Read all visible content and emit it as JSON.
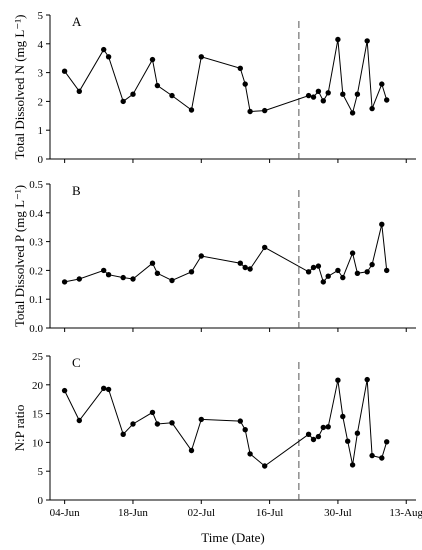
{
  "chart_data": [
    {
      "type": "line",
      "panel_label": "A",
      "ylabel": "Total Dissolved N (mg L⁻¹)",
      "ylim": [
        0,
        5
      ],
      "yticks": [
        "0",
        "1",
        "2",
        "3",
        "4",
        "5"
      ],
      "marker_date": "2022-07-22",
      "series": [
        {
          "x": [
            "2022-06-04",
            "2022-06-07",
            "2022-06-12",
            "2022-06-13",
            "2022-06-16",
            "2022-06-18",
            "2022-06-22",
            "2022-06-23",
            "2022-06-26",
            "2022-06-30",
            "2022-07-02",
            "2022-07-10",
            "2022-07-11",
            "2022-07-12",
            "2022-07-15",
            "2022-07-24",
            "2022-07-25",
            "2022-07-26",
            "2022-07-27",
            "2022-07-28",
            "2022-07-30",
            "2022-07-31",
            "2022-08-02",
            "2022-08-03",
            "2022-08-05",
            "2022-08-06",
            "2022-08-08",
            "2022-08-09"
          ],
          "y": [
            3.05,
            2.35,
            3.8,
            3.55,
            2.0,
            2.25,
            3.45,
            2.55,
            2.2,
            1.7,
            3.55,
            3.15,
            2.6,
            1.65,
            1.68,
            2.2,
            2.15,
            2.35,
            2.02,
            2.3,
            4.15,
            2.25,
            1.6,
            2.25,
            4.1,
            1.75,
            2.6,
            2.05
          ]
        }
      ]
    },
    {
      "type": "line",
      "panel_label": "B",
      "ylabel": "Total Dissolved P (mg L⁻¹)",
      "ylim": [
        0,
        0.5
      ],
      "yticks": [
        "0.0",
        "0.1",
        "0.2",
        "0.3",
        "0.4",
        "0.5"
      ],
      "marker_date": "2022-07-22",
      "series": [
        {
          "x": [
            "2022-06-04",
            "2022-06-07",
            "2022-06-12",
            "2022-06-13",
            "2022-06-16",
            "2022-06-18",
            "2022-06-22",
            "2022-06-23",
            "2022-06-26",
            "2022-06-30",
            "2022-07-02",
            "2022-07-10",
            "2022-07-11",
            "2022-07-12",
            "2022-07-15",
            "2022-07-24",
            "2022-07-25",
            "2022-07-26",
            "2022-07-27",
            "2022-07-28",
            "2022-07-30",
            "2022-07-31",
            "2022-08-02",
            "2022-08-03",
            "2022-08-05",
            "2022-08-06",
            "2022-08-08",
            "2022-08-09"
          ],
          "y": [
            0.16,
            0.17,
            0.2,
            0.185,
            0.175,
            0.17,
            0.225,
            0.19,
            0.165,
            0.195,
            0.25,
            0.225,
            0.21,
            0.205,
            0.28,
            0.195,
            0.21,
            0.215,
            0.16,
            0.18,
            0.2,
            0.175,
            0.26,
            0.19,
            0.195,
            0.22,
            0.36,
            0.2
          ]
        }
      ]
    },
    {
      "type": "line",
      "panel_label": "C",
      "ylabel": "N:P ratio",
      "ylim": [
        0,
        25
      ],
      "yticks": [
        "0",
        "5",
        "10",
        "15",
        "20",
        "25"
      ],
      "marker_date": "2022-07-22",
      "series": [
        {
          "x": [
            "2022-06-04",
            "2022-06-07",
            "2022-06-12",
            "2022-06-13",
            "2022-06-16",
            "2022-06-18",
            "2022-06-22",
            "2022-06-23",
            "2022-06-26",
            "2022-06-30",
            "2022-07-02",
            "2022-07-10",
            "2022-07-11",
            "2022-07-12",
            "2022-07-15",
            "2022-07-24",
            "2022-07-25",
            "2022-07-26",
            "2022-07-27",
            "2022-07-28",
            "2022-07-30",
            "2022-07-31",
            "2022-08-01",
            "2022-08-02",
            "2022-08-03",
            "2022-08-05",
            "2022-08-06",
            "2022-08-08",
            "2022-08-09"
          ],
          "y": [
            19.0,
            13.8,
            19.4,
            19.2,
            11.4,
            13.2,
            15.2,
            13.2,
            13.4,
            8.6,
            14.0,
            13.7,
            12.2,
            8.0,
            5.9,
            11.4,
            10.5,
            11.0,
            12.6,
            12.7,
            20.8,
            14.5,
            10.2,
            6.1,
            11.6,
            20.9,
            7.7,
            7.3,
            10.1
          ]
        }
      ]
    }
  ],
  "x_axis": {
    "label": "Time (Date)",
    "ticks": [
      {
        "date": "2022-06-04",
        "label": "04-Jun"
      },
      {
        "date": "2022-06-18",
        "label": "18-Jun"
      },
      {
        "date": "2022-07-02",
        "label": "02-Jul"
      },
      {
        "date": "2022-07-16",
        "label": "16-Jul"
      },
      {
        "date": "2022-07-30",
        "label": "30-Jul"
      },
      {
        "date": "2022-08-13",
        "label": "13-Aug"
      }
    ],
    "range": [
      "2022-06-01",
      "2022-08-15"
    ]
  }
}
